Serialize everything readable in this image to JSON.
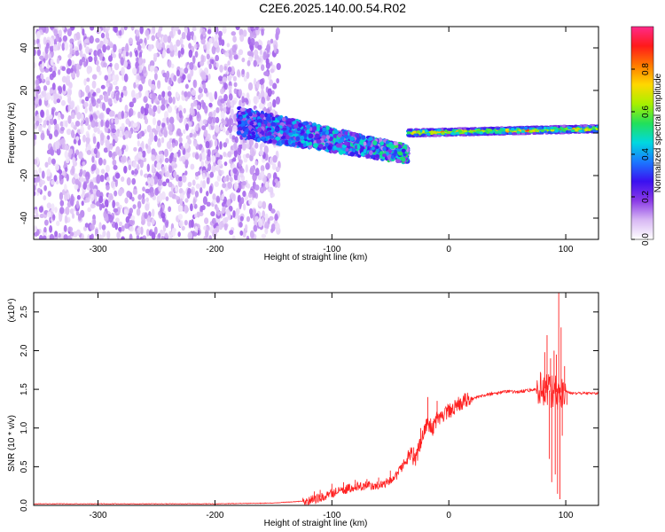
{
  "title": "C2E6.2025.140.00.54.R02",
  "chart_data": [
    {
      "type": "heatmap",
      "xlabel": "Height of straight line (km)",
      "ylabel": "Frequency (Hz)",
      "xlim": [
        -355,
        128
      ],
      "ylim": [
        -50,
        50
      ],
      "xticks": [
        -300,
        -200,
        -100,
        0,
        100
      ],
      "yticks": [
        -40,
        -20,
        0,
        20,
        40
      ],
      "colorbar": {
        "label": "Normalized spectral amplitude",
        "range": [
          0.0,
          1.0
        ],
        "ticks": [
          0.0,
          0.2,
          0.4,
          0.6,
          0.8
        ],
        "colors": [
          "#ffffff",
          "#d8b8f4",
          "#8a3ae6",
          "#3a10f0",
          "#1a78ff",
          "#00d8e0",
          "#22e05a",
          "#a8f000",
          "#ffd800",
          "#ff7a00",
          "#ff1a1a",
          "#ff2a8a"
        ]
      },
      "features": [
        {
          "x_range": [
            -355,
            -145
          ],
          "f_range": [
            -50,
            50
          ],
          "amplitude": 0.12,
          "pattern": "broadband noise"
        },
        {
          "x_range": [
            -180,
            -35
          ],
          "f_center": [
            5,
            -10
          ],
          "amplitude": 0.3,
          "pattern": "spreading band drifting downward"
        },
        {
          "x_range": [
            -35,
            128
          ],
          "f_center": [
            0,
            2
          ],
          "amplitude": 0.6,
          "pattern": "narrow band near 0 Hz"
        }
      ]
    },
    {
      "type": "line",
      "xlabel": "Height of straight line (km)",
      "ylabel": "SNR (10 * v/v)",
      "y_multiplier": "(x10⁴)",
      "xlim": [
        -355,
        128
      ],
      "ylim": [
        0.0,
        2.75
      ],
      "xticks": [
        -300,
        -200,
        -100,
        0,
        100
      ],
      "yticks": [
        0.0,
        0.5,
        1.0,
        1.5,
        2.0,
        2.5
      ],
      "series": [
        {
          "color": "#ff2020",
          "points": [
            [
              -355,
              0.02
            ],
            [
              -300,
              0.02
            ],
            [
              -250,
              0.02
            ],
            [
              -200,
              0.02
            ],
            [
              -150,
              0.03
            ],
            [
              -120,
              0.06
            ],
            [
              -105,
              0.12
            ],
            [
              -95,
              0.18
            ],
            [
              -85,
              0.22
            ],
            [
              -75,
              0.25
            ],
            [
              -65,
              0.25
            ],
            [
              -55,
              0.28
            ],
            [
              -45,
              0.38
            ],
            [
              -38,
              0.55
            ],
            [
              -32,
              0.65
            ],
            [
              -28,
              0.6
            ],
            [
              -25,
              0.78
            ],
            [
              -22,
              0.95
            ],
            [
              -18,
              1.05
            ],
            [
              -14,
              1.0
            ],
            [
              -10,
              1.12
            ],
            [
              -6,
              1.18
            ],
            [
              -2,
              1.2
            ],
            [
              3,
              1.22
            ],
            [
              8,
              1.3
            ],
            [
              14,
              1.35
            ],
            [
              20,
              1.38
            ],
            [
              30,
              1.42
            ],
            [
              40,
              1.45
            ],
            [
              50,
              1.47
            ],
            [
              60,
              1.47
            ],
            [
              70,
              1.49
            ],
            [
              75,
              1.5
            ],
            [
              80,
              1.52
            ],
            [
              85,
              1.5
            ],
            [
              88,
              1.45
            ],
            [
              90,
              1.5
            ],
            [
              93,
              1.45
            ],
            [
              95,
              1.45
            ],
            [
              98,
              1.48
            ],
            [
              100,
              1.48
            ],
            [
              105,
              1.45
            ],
            [
              110,
              1.45
            ],
            [
              120,
              1.45
            ],
            [
              128,
              1.45
            ]
          ],
          "spikes": [
            [
              -18,
              1.4
            ],
            [
              -24,
              1.0
            ],
            [
              -30,
              0.75
            ],
            [
              -50,
              0.45
            ],
            [
              -60,
              0.36
            ],
            [
              -70,
              0.34
            ],
            [
              -80,
              0.33
            ],
            [
              -90,
              0.3
            ],
            [
              -100,
              0.28
            ],
            [
              -110,
              0.2
            ],
            [
              -115,
              0.18
            ],
            [
              -10,
              1.35
            ],
            [
              0,
              1.28
            ],
            [
              10,
              1.38
            ],
            [
              82,
              1.98
            ],
            [
              84,
              2.2
            ],
            [
              86,
              0.6
            ],
            [
              87,
              1.9
            ],
            [
              88,
              0.3
            ],
            [
              90,
              2.0
            ],
            [
              91,
              0.4
            ],
            [
              92,
              1.95
            ],
            [
              93,
              0.15
            ],
            [
              94,
              2.75
            ],
            [
              95,
              0.08
            ],
            [
              96,
              2.3
            ],
            [
              97,
              0.9
            ],
            [
              99,
              1.8
            ],
            [
              101,
              1.3
            ]
          ]
        }
      ]
    }
  ]
}
